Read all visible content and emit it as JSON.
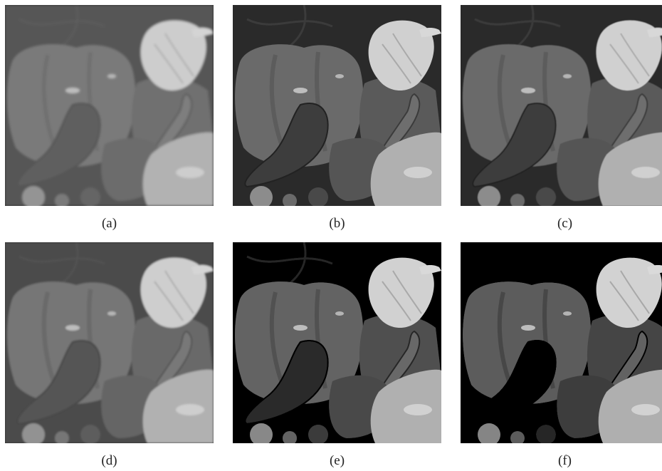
{
  "figure": {
    "panels": [
      {
        "label": "(a)",
        "blur": 1.6,
        "contrast": 0.85
      },
      {
        "label": "(b)",
        "blur": 0.3,
        "contrast": 1.0
      },
      {
        "label": "(c)",
        "blur": 0.4,
        "contrast": 1.0
      },
      {
        "label": "(d)",
        "blur": 1.2,
        "contrast": 0.9
      },
      {
        "label": "(e)",
        "blur": 0.3,
        "contrast": 1.05
      },
      {
        "label": "(f)",
        "blur": 0.2,
        "contrast": 1.1
      }
    ]
  }
}
